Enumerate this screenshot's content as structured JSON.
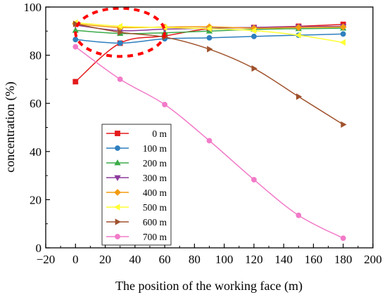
{
  "chart_data": {
    "type": "line",
    "xlabel": "The position of the working face (m)",
    "ylabel": "concentration (%)",
    "xlim": [
      -20,
      200
    ],
    "ylim": [
      0,
      100
    ],
    "xticks": [
      -20,
      0,
      20,
      40,
      60,
      80,
      100,
      120,
      140,
      160,
      180,
      200
    ],
    "yticks": [
      0,
      20,
      40,
      60,
      80,
      100
    ],
    "x": [
      0,
      30,
      60,
      90,
      120,
      150,
      180
    ],
    "grid": false,
    "legend_position": "lower-left inside",
    "series": [
      {
        "name": "0 m",
        "color": "#e41a1c",
        "marker": "square",
        "values": [
          69.0,
          85.0,
          88.0,
          91.0,
          91.5,
          92.0,
          92.8
        ]
      },
      {
        "name": "100 m",
        "color": "#2e7fbf",
        "marker": "circle",
        "values": [
          86.5,
          85.0,
          86.8,
          87.2,
          87.8,
          88.3,
          88.8
        ]
      },
      {
        "name": "200 m",
        "color": "#3aab48",
        "marker": "triangle-up",
        "values": [
          90.3,
          89.0,
          89.3,
          90.0,
          90.7,
          91.0,
          91.2
        ]
      },
      {
        "name": "300 m",
        "color": "#8b3a9c",
        "marker": "triangle-down",
        "values": [
          92.5,
          90.2,
          90.8,
          91.2,
          91.5,
          91.8,
          92.0
        ]
      },
      {
        "name": "400 m",
        "color": "#f39c12",
        "marker": "diamond",
        "values": [
          93.0,
          91.5,
          91.7,
          91.8,
          91.2,
          91.5,
          91.7
        ]
      },
      {
        "name": "500 m",
        "color": "#ffff33",
        "marker": "triangle-left",
        "values": [
          93.5,
          92.0,
          91.5,
          91.0,
          90.2,
          88.3,
          85.3
        ]
      },
      {
        "name": "600 m",
        "color": "#a0522d",
        "marker": "triangle-right",
        "values": [
          93.0,
          89.5,
          87.5,
          82.5,
          74.5,
          62.8,
          51.2
        ]
      },
      {
        "name": "700 m",
        "color": "#f27ac8",
        "marker": "circle",
        "values": [
          83.5,
          70.0,
          59.5,
          44.5,
          28.3,
          13.5,
          4.0
        ]
      }
    ],
    "annotations": [
      {
        "type": "dashed-ellipse",
        "color": "#ff0000",
        "center": [
          30,
          89.5
        ],
        "radii": [
          30,
          10
        ]
      }
    ]
  }
}
